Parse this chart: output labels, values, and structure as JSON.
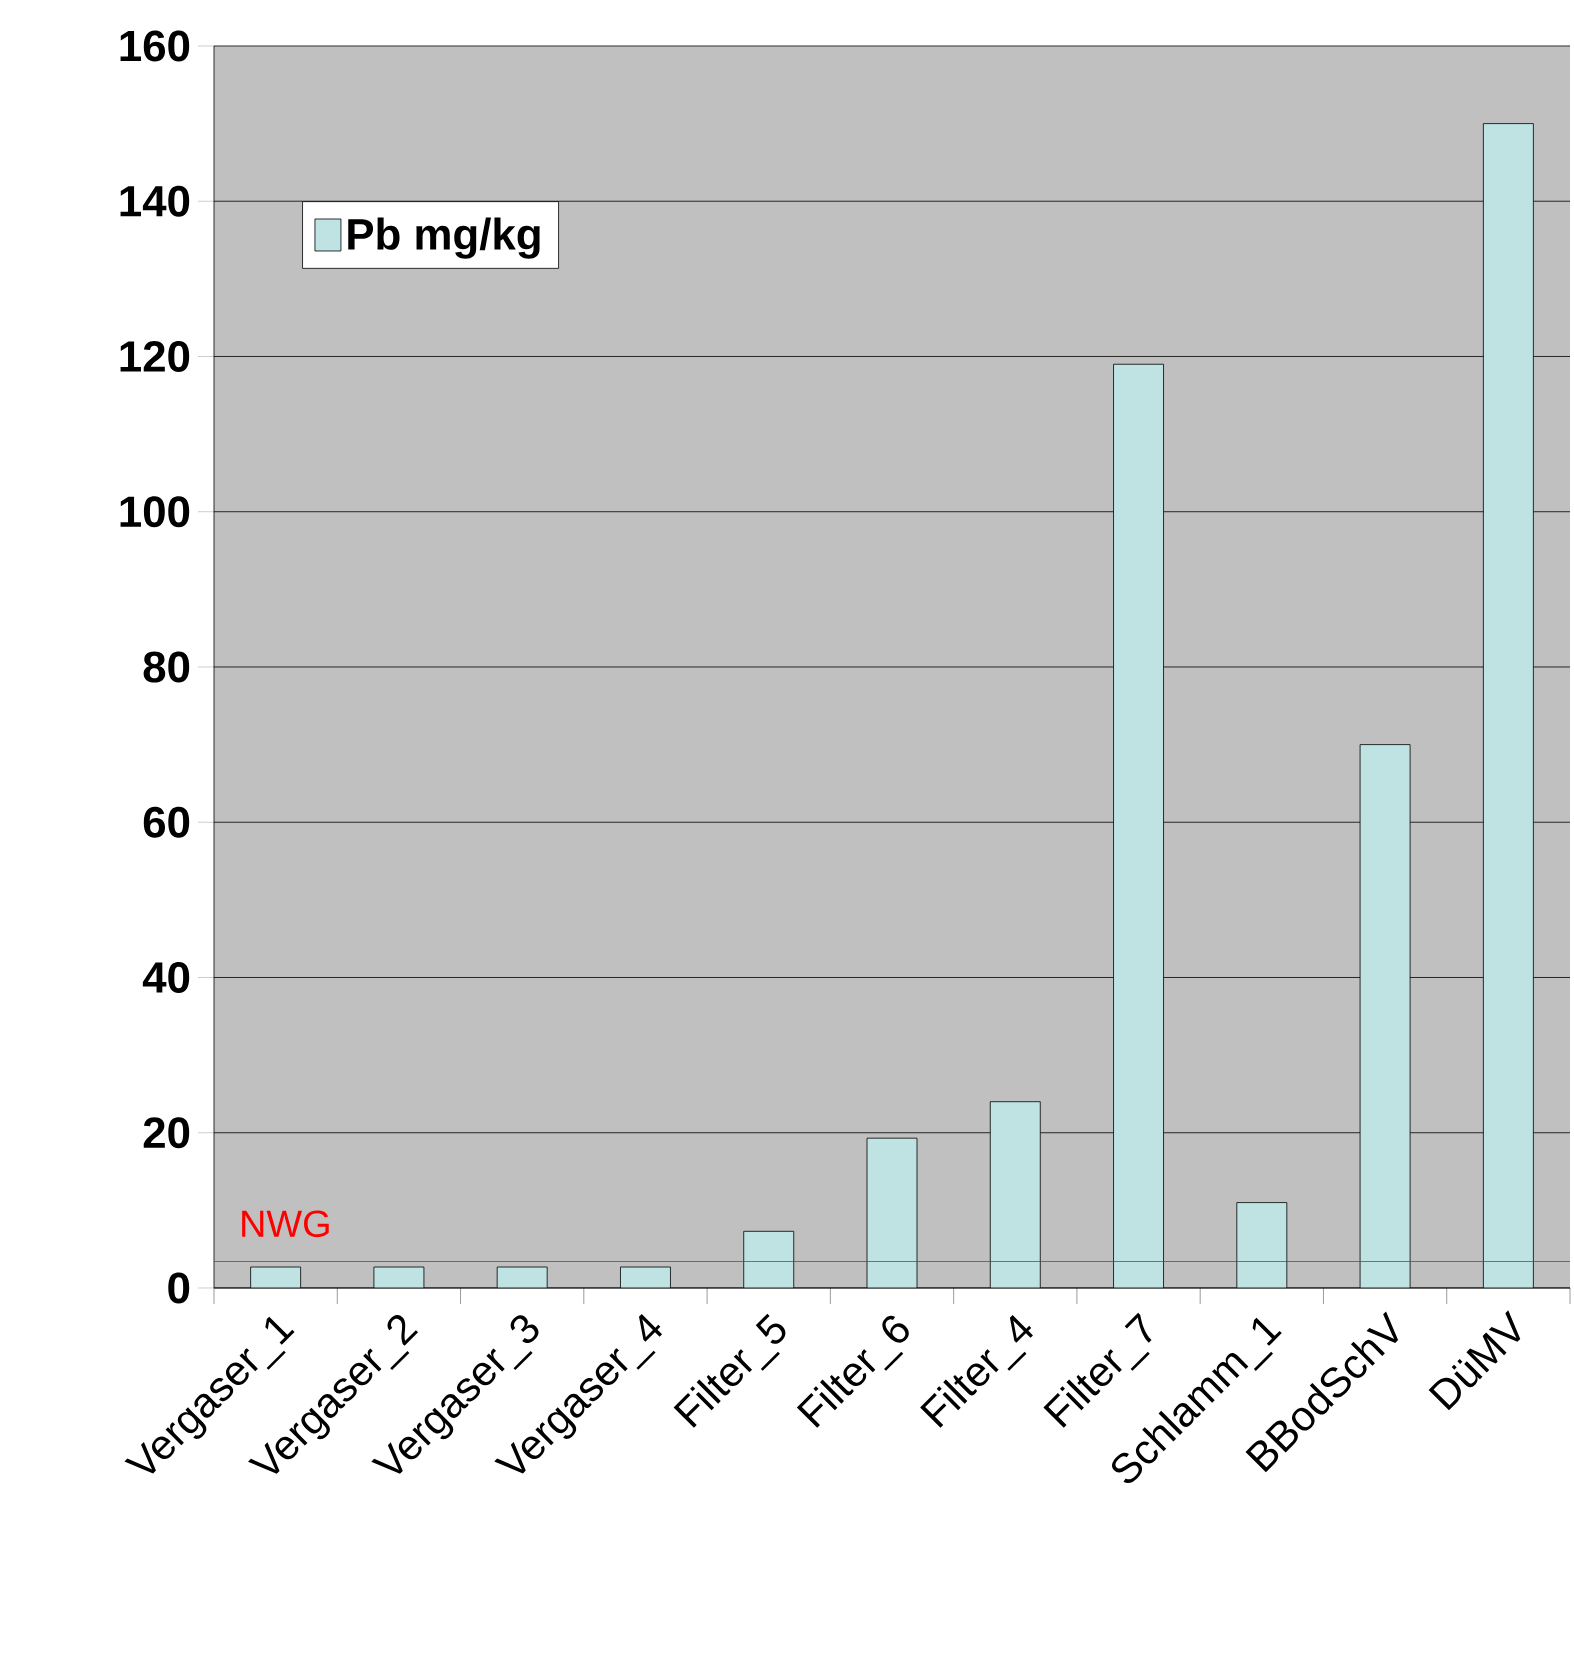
{
  "chart_data": {
    "type": "bar",
    "categories": [
      "Vergaser_1",
      "Vergaser_2",
      "Vergaser_3",
      "Vergaser_4",
      "Filter_5",
      "Filter_6",
      "Filter_4",
      "Filter_7",
      "Schlamm_1",
      "BBodSchV",
      "DüMV"
    ],
    "series": [
      {
        "name": "Pb mg/kg",
        "color": "#bfe3e3",
        "values": [
          2.7,
          2.7,
          2.7,
          2.7,
          7.3,
          19.3,
          24,
          119,
          11,
          70,
          150
        ]
      }
    ],
    "ylim": [
      0,
      160
    ],
    "yticks": [
      0,
      20,
      40,
      60,
      80,
      100,
      120,
      140,
      160
    ],
    "grid": "y",
    "legend": "top left",
    "ref_lines": [
      {
        "axis": "y",
        "value": 3.4,
        "label": "NWG",
        "color": "#ff0000"
      }
    ]
  }
}
